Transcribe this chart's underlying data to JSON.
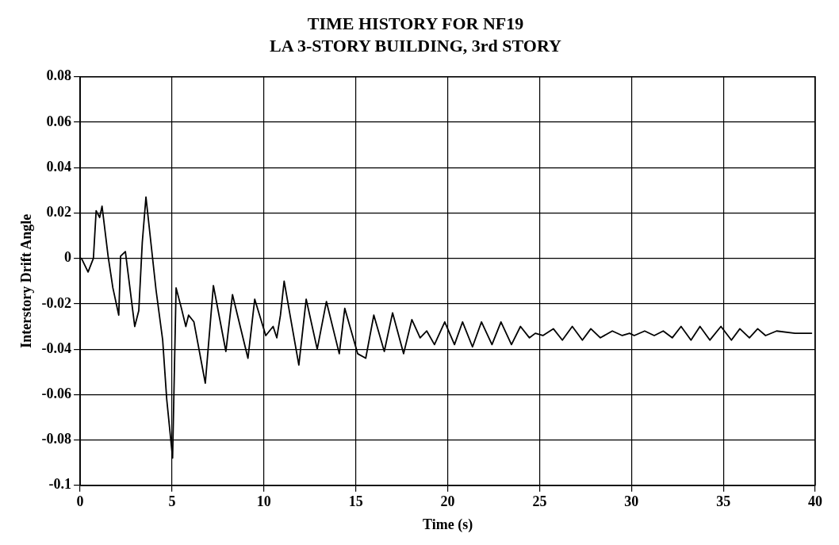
{
  "chart_data": {
    "type": "line",
    "title": "TIME HISTORY FOR NF19",
    "subtitle": "LA 3-STORY BUILDING, 3rd STORY",
    "xlabel": "Time (s)",
    "ylabel": "Interstory Drift Angle",
    "xlim": [
      0,
      40
    ],
    "xticks": [
      0,
      5,
      10,
      15,
      20,
      25,
      30,
      35,
      40
    ],
    "ylim": [
      -0.1,
      0.08
    ],
    "yticks": [
      -0.1,
      -0.08,
      -0.06,
      -0.04,
      -0.02,
      0,
      0.02,
      0.04,
      0.06,
      0.08
    ],
    "grid": true,
    "legend": false,
    "marker": "none",
    "line_style": "solid",
    "series": [
      {
        "color": "#000000",
        "x": [
          0,
          0.07,
          0.43,
          0.72,
          0.87,
          1.06,
          1.19,
          1.52,
          1.78,
          2.1,
          2.2,
          2.46,
          2.97,
          3.19,
          3.38,
          3.58,
          4.13,
          4.49,
          4.71,
          5.03,
          5.22,
          5.51,
          5.75,
          5.9,
          6.19,
          6.81,
          7.25,
          7.93,
          8.29,
          9.13,
          9.5,
          10.1,
          10.5,
          10.7,
          10.9,
          11.1,
          11.4,
          11.9,
          12.3,
          12.9,
          13.4,
          14.1,
          14.4,
          15.1,
          15.54,
          15.98,
          16.55,
          17.0,
          17.6,
          18.05,
          18.5,
          18.86,
          19.28,
          19.84,
          20.37,
          20.81,
          21.35,
          21.84,
          22.41,
          22.9,
          23.47,
          23.96,
          24.45,
          24.77,
          25.18,
          25.75,
          26.24,
          26.78,
          27.33,
          27.79,
          28.31,
          28.96,
          29.5,
          29.9,
          30.15,
          30.72,
          31.24,
          31.73,
          32.22,
          32.7,
          33.24,
          33.73,
          34.27,
          34.87,
          35.44,
          35.9,
          36.42,
          36.87,
          37.3,
          37.9,
          38.9,
          39.8
        ],
        "values": [
          0,
          0,
          -0.006,
          0,
          0.021,
          0.018,
          0.023,
          0.001,
          -0.013,
          -0.025,
          0.001,
          0.003,
          -0.03,
          -0.023,
          0.007,
          0.027,
          -0.014,
          -0.036,
          -0.062,
          -0.088,
          -0.013,
          -0.022,
          -0.03,
          -0.025,
          -0.028,
          -0.055,
          -0.012,
          -0.041,
          -0.016,
          -0.044,
          -0.018,
          -0.034,
          -0.03,
          -0.035,
          -0.025,
          -0.01,
          -0.024,
          -0.047,
          -0.018,
          -0.04,
          -0.019,
          -0.042,
          -0.022,
          -0.042,
          -0.044,
          -0.025,
          -0.041,
          -0.024,
          -0.042,
          -0.027,
          -0.035,
          -0.032,
          -0.038,
          -0.028,
          -0.038,
          -0.028,
          -0.039,
          -0.028,
          -0.038,
          -0.028,
          -0.038,
          -0.03,
          -0.035,
          -0.033,
          -0.034,
          -0.031,
          -0.036,
          -0.03,
          -0.036,
          -0.031,
          -0.035,
          -0.032,
          -0.034,
          -0.033,
          -0.034,
          -0.032,
          -0.034,
          -0.032,
          -0.035,
          -0.03,
          -0.036,
          -0.03,
          -0.036,
          -0.03,
          -0.036,
          -0.031,
          -0.035,
          -0.031,
          -0.034,
          -0.032,
          -0.033,
          -0.033
        ]
      }
    ]
  }
}
